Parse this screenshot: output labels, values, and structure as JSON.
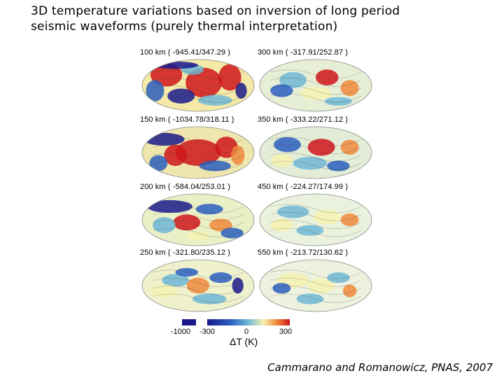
{
  "title": {
    "line1": "3D temperature variations based on inversion of long period",
    "line2": "seismic waveforms (purely thermal interpretation)"
  },
  "panels": [
    {
      "label": "100 km ( -945.41/347.29 )"
    },
    {
      "label": "150 km ( -1034.78/318.11 )"
    },
    {
      "label": "200 km ( -584.04/253.01 )"
    },
    {
      "label": "250 km ( -321.80/235.12 )"
    },
    {
      "label": "300 km ( -317.91/252.87 )"
    },
    {
      "label": "350 km ( -333.22/271.12 )"
    },
    {
      "label": "450 km ( -224.27/174.99 )"
    },
    {
      "label": "550 km ( -213.72/130.62 )"
    }
  ],
  "colorbar": {
    "ticks": [
      "-1000",
      "-300",
      "0",
      "300"
    ],
    "title": "ΔT (K)",
    "colors": [
      "#1a1a8c",
      "#2a5fbf",
      "#6fb7d6",
      "#f6f2b0",
      "#f08a3c",
      "#d0151b"
    ]
  },
  "citation": "Cammarano and Romanowicz, PNAS, 2007"
}
